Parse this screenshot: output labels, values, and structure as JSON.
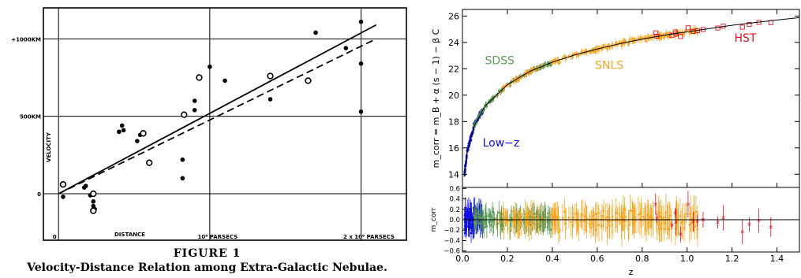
{
  "chart_data": [
    {
      "type": "scatter",
      "xlabel": "DISTANCE",
      "ylabel": "VELOCITY",
      "x_ticks": [
        {
          "value": 0,
          "label": "0"
        },
        {
          "value": 1000000,
          "label": "10⁶ PARSECS"
        },
        {
          "value": 2000000,
          "label": "2 x 10⁶ PARSECS"
        }
      ],
      "y_ticks": [
        {
          "value": 0,
          "label": "0"
        },
        {
          "value": 500,
          "label": "500KM"
        },
        {
          "value": 1000,
          "label": "+1000KM"
        }
      ],
      "xlim": [
        -100000,
        2300000
      ],
      "ylim": [
        -300,
        1200
      ],
      "grid": true,
      "caption_label": "FIGURE 1",
      "caption": "Velocity-Distance Relation among Extra-Galactic Nebulae.",
      "series": [
        {
          "marker": "filled",
          "x": [
            30000,
            170000,
            180000,
            210000,
            230000,
            230000,
            240000,
            400000,
            420000,
            430000,
            520000,
            540000,
            820000,
            820000,
            900000,
            900000,
            1000000,
            1100000,
            1400000,
            1700000,
            1900000,
            2000000,
            2000000,
            2000000
          ],
          "y": [
            -20,
            40,
            50,
            -10,
            -50,
            -80,
            -100,
            400,
            440,
            410,
            340,
            380,
            220,
            100,
            600,
            540,
            820,
            730,
            610,
            1040,
            940,
            1110,
            840,
            530
          ]
        },
        {
          "marker": "open",
          "x": [
            30000,
            230000,
            230000,
            560000,
            600000,
            830000,
            930000,
            1400000,
            1650000
          ],
          "y": [
            60,
            0,
            -110,
            390,
            200,
            510,
            750,
            760,
            730
          ]
        }
      ],
      "lines": [
        {
          "style": "solid",
          "x": [
            0,
            2100000
          ],
          "y": [
            0,
            1090
          ]
        },
        {
          "style": "dashed",
          "x": [
            0,
            2100000
          ],
          "y": [
            0,
            1000
          ]
        }
      ]
    },
    {
      "type": "scatter",
      "xlabel": "z",
      "ylabel": "m_corr = m_B + α (s − 1) − β C",
      "xlim": [
        0,
        1.5
      ],
      "ylim": [
        13,
        26.5
      ],
      "x_ticks": [
        0,
        0.2,
        0.4,
        0.6,
        0.8,
        1.0,
        1.2,
        1.4
      ],
      "x_tick_labels": [
        "0.0",
        "0.2",
        "0.4",
        "0.6",
        "0.8",
        "1.0",
        "1.2",
        "1.4"
      ],
      "y_ticks": [
        14,
        16,
        18,
        20,
        22,
        24,
        26
      ],
      "series": [
        {
          "name": "Low−z",
          "color": "#1010e0",
          "z_range": [
            0.01,
            0.09
          ]
        },
        {
          "name": "SDSS",
          "color": "#5a9a5a",
          "z_range": [
            0.05,
            0.4
          ]
        },
        {
          "name": "SNLS",
          "color": "#f5a623",
          "z_range": [
            0.15,
            1.05
          ]
        },
        {
          "name": "HST",
          "color": "#e01020",
          "z_range": [
            0.85,
            1.42
          ]
        }
      ],
      "model_curve": {
        "z": [
          0.01,
          0.02,
          0.05,
          0.1,
          0.2,
          0.3,
          0.4,
          0.5,
          0.6,
          0.7,
          0.8,
          0.9,
          1.0,
          1.1,
          1.2,
          1.3,
          1.4,
          1.5
        ],
        "m": [
          14.1,
          15.6,
          17.6,
          19.15,
          20.8,
          21.8,
          22.5,
          23.05,
          23.5,
          23.9,
          24.25,
          24.55,
          24.8,
          25.05,
          25.3,
          25.5,
          25.7,
          25.88
        ]
      },
      "residual_panel": {
        "ylabel": "m_corr",
        "ylim": [
          -0.62,
          0.62
        ],
        "y_ticks": [
          -0.6,
          -0.4,
          -0.2,
          0.0,
          0.2,
          0.4,
          0.6
        ],
        "y_tick_labels": [
          "−0.6",
          "−0.4",
          "−0.2",
          "0.0",
          "0.2",
          "0.4",
          "0.6"
        ]
      }
    }
  ]
}
